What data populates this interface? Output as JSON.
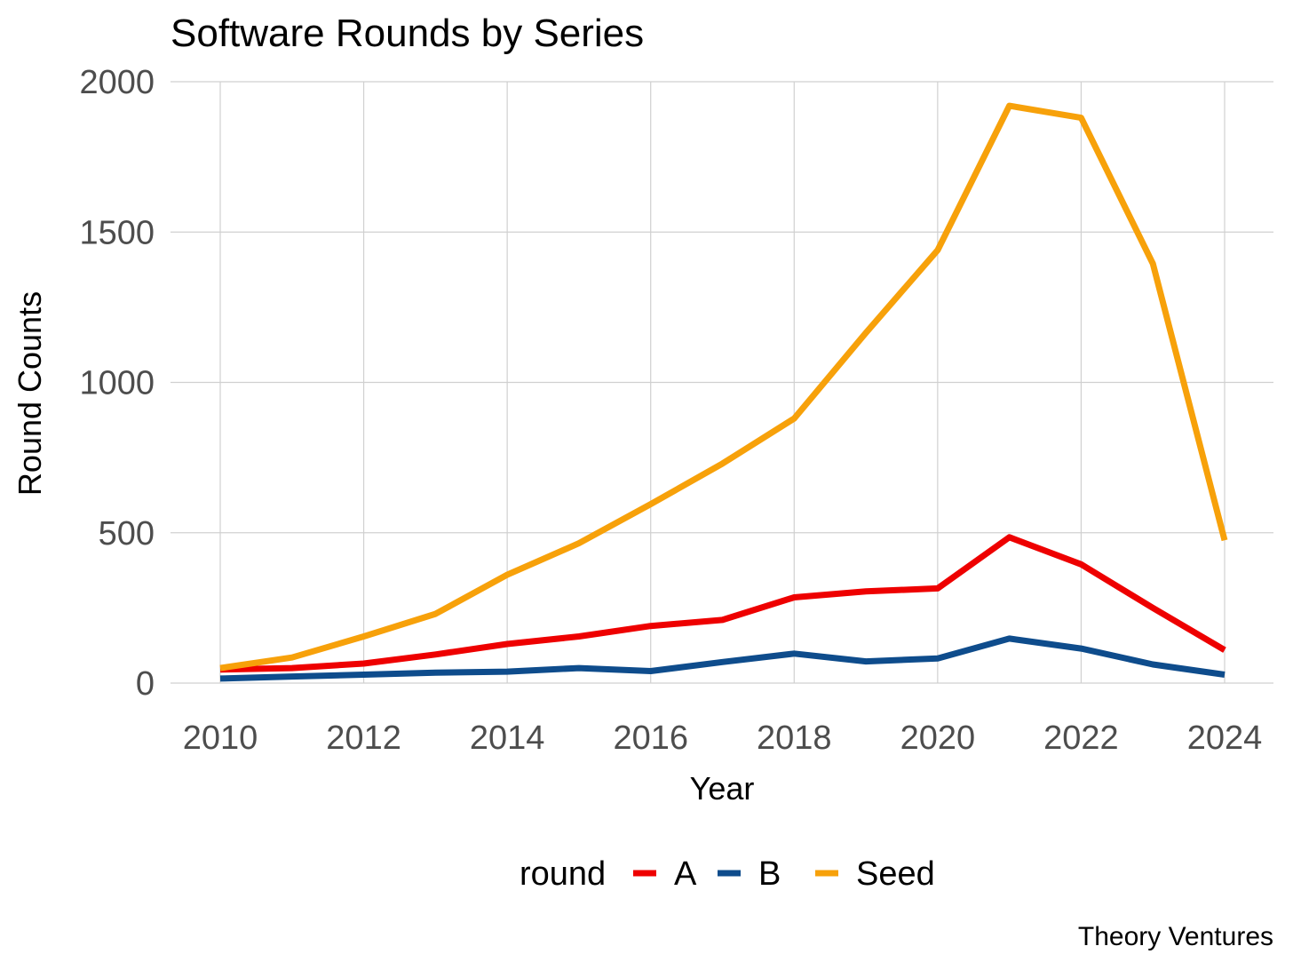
{
  "chart_data": {
    "type": "line",
    "title": "Software Rounds by Series",
    "xlabel": "Year",
    "ylabel": "Round Counts",
    "x": [
      2010,
      2011,
      2012,
      2013,
      2014,
      2015,
      2016,
      2017,
      2018,
      2019,
      2020,
      2021,
      2022,
      2023,
      2024
    ],
    "xlim": [
      2010,
      2024
    ],
    "ylim": [
      0,
      2000
    ],
    "x_ticks": [
      2010,
      2012,
      2014,
      2016,
      2018,
      2020,
      2022,
      2024
    ],
    "y_ticks": [
      0,
      500,
      1000,
      1500,
      2000
    ],
    "grid": true,
    "series": [
      {
        "name": "A",
        "color": "#ee0000",
        "values": [
          45,
          50,
          65,
          95,
          130,
          155,
          190,
          210,
          285,
          305,
          315,
          485,
          395,
          250,
          110
        ]
      },
      {
        "name": "B",
        "color": "#0e4c8c",
        "values": [
          15,
          22,
          28,
          35,
          38,
          50,
          40,
          70,
          98,
          72,
          82,
          148,
          115,
          62,
          28
        ]
      },
      {
        "name": "Seed",
        "color": "#f7a10a",
        "values": [
          50,
          85,
          155,
          230,
          360,
          465,
          595,
          730,
          880,
          1165,
          1440,
          1920,
          1880,
          1395,
          475
        ]
      }
    ],
    "legend": {
      "title": "round",
      "position": "bottom"
    },
    "caption": "Theory Ventures"
  }
}
